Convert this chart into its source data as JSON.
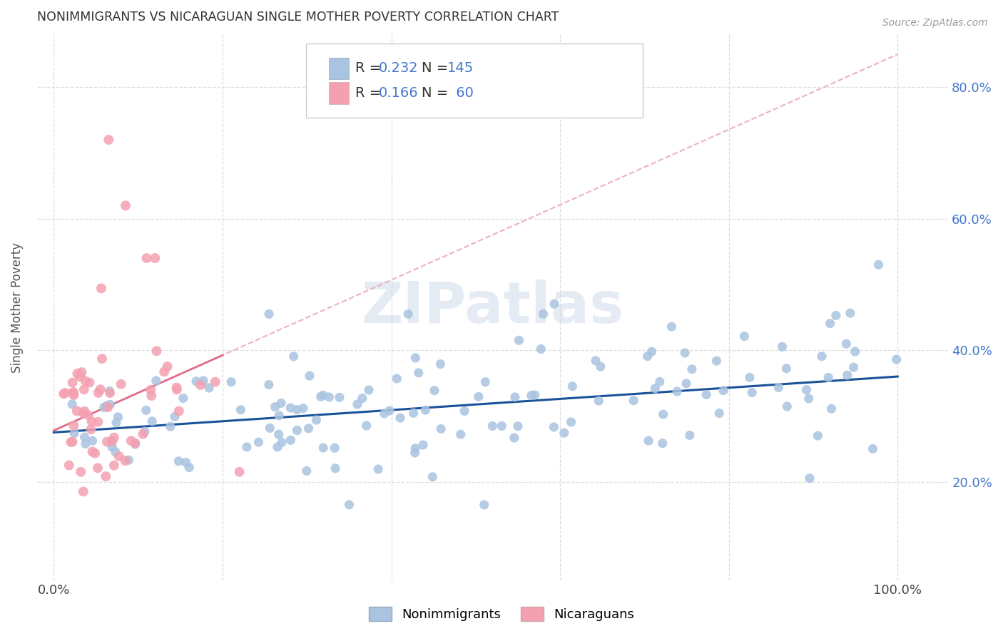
{
  "title": "NONIMMIGRANTS VS NICARAGUAN SINGLE MOTHER POVERTY CORRELATION CHART",
  "source": "Source: ZipAtlas.com",
  "ylabel": "Single Mother Poverty",
  "x_tick_labels": [
    "0.0%",
    "",
    "",
    "",
    "",
    "100.0%"
  ],
  "y_tick_right": [
    "20.0%",
    "40.0%",
    "60.0%",
    "80.0%"
  ],
  "y_tick_vals": [
    0.2,
    0.4,
    0.6,
    0.8
  ],
  "xlim": [
    -0.02,
    1.06
  ],
  "ylim": [
    0.05,
    0.88
  ],
  "blue_color": "#A8C4E0",
  "pink_color": "#F4A0B0",
  "blue_line_color": "#1A5299",
  "pink_line_color": "#E06080",
  "pink_dash_color": "#E8A0B0",
  "watermark": "ZIPatlas",
  "background_color": "#ffffff",
  "grid_color": "#dddddd",
  "right_axis_color": "#4477CC",
  "title_color": "#333333",
  "source_color": "#999999"
}
